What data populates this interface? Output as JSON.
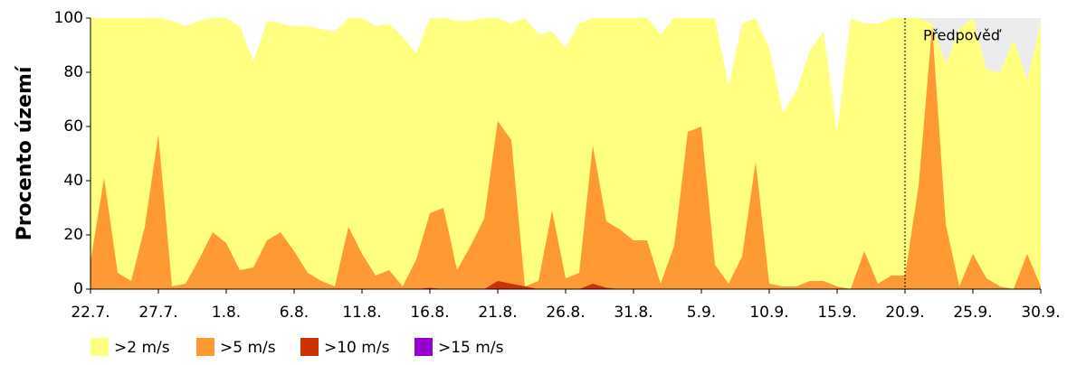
{
  "chart_data": {
    "type": "area",
    "ylabel": "Procento území",
    "categories": [
      "22.7.",
      null,
      null,
      null,
      null,
      "27.7.",
      null,
      null,
      null,
      null,
      "1.8.",
      null,
      null,
      null,
      null,
      "6.8.",
      null,
      null,
      null,
      null,
      "11.8.",
      null,
      null,
      null,
      null,
      "16.8.",
      null,
      null,
      null,
      null,
      "21.8.",
      null,
      null,
      null,
      null,
      "26.8.",
      null,
      null,
      null,
      null,
      "31.8.",
      null,
      null,
      null,
      null,
      "5.9.",
      null,
      null,
      null,
      null,
      "10.9.",
      null,
      null,
      null,
      null,
      "15.9.",
      null,
      null,
      null,
      null,
      "20.9.",
      null,
      null,
      null,
      null,
      "25.9.",
      null,
      null,
      null,
      null,
      "30.9."
    ],
    "series": [
      {
        "name": ">2 m/s",
        "color": "#ffff80",
        "values": [
          100,
          100,
          100,
          100,
          100,
          100,
          99,
          97,
          99,
          100,
          100,
          97,
          84,
          99,
          98,
          97,
          97,
          96,
          95,
          100,
          100,
          97,
          98,
          93,
          87,
          100,
          100,
          99,
          99,
          100,
          100,
          98,
          100,
          94,
          95,
          89,
          98,
          100,
          100,
          100,
          100,
          100,
          94,
          100,
          100,
          100,
          100,
          75,
          98,
          100,
          89,
          65,
          73,
          88,
          95,
          58,
          100,
          98,
          98,
          100,
          100,
          100,
          98,
          83,
          96,
          100,
          81,
          80,
          92,
          77,
          98
        ]
      },
      {
        "name": ">5 m/s",
        "color": "#ff9933",
        "values": [
          10,
          41,
          6,
          3,
          23,
          57,
          1,
          2,
          11,
          21,
          17,
          7,
          8,
          18,
          21,
          14,
          6,
          3,
          1,
          23,
          13,
          5,
          7,
          1,
          11,
          28,
          30,
          7,
          16,
          26,
          62,
          55,
          1,
          3,
          29,
          4,
          6,
          53,
          25,
          22,
          18,
          18,
          2,
          16,
          58,
          60,
          9,
          2,
          12,
          47,
          2,
          1,
          1,
          3,
          3,
          1,
          0,
          14,
          2,
          5,
          5,
          38,
          97,
          24,
          1,
          13,
          4,
          1,
          0,
          13,
          1
        ]
      },
      {
        "name": ">10 m/s",
        "color": "#cc3300",
        "values": [
          0,
          0,
          0,
          0,
          0,
          0,
          0,
          0,
          0,
          0,
          0,
          0,
          0,
          0,
          0,
          0,
          0,
          0,
          0,
          0,
          0,
          0,
          0,
          0,
          0,
          0.5,
          0,
          0,
          0,
          0,
          3,
          2,
          1,
          0,
          0,
          0,
          0,
          2,
          0.5,
          0,
          0,
          0,
          0,
          0,
          0,
          0,
          0,
          0,
          0,
          0,
          0,
          0,
          0,
          0,
          0,
          0,
          0,
          0,
          0,
          0,
          0,
          0,
          0,
          0,
          0,
          0,
          0,
          0,
          0,
          0,
          0
        ]
      },
      {
        "name": ">15 m/s",
        "color": "#9900cc",
        "values": [
          0,
          0,
          0,
          0,
          0,
          0,
          0,
          0,
          0,
          0,
          0,
          0,
          0,
          0,
          0,
          0,
          0,
          0,
          0,
          0,
          0,
          0,
          0,
          0,
          0,
          0,
          0,
          0,
          0,
          0,
          0,
          0,
          0,
          0,
          0,
          0,
          0,
          0,
          0,
          0,
          0,
          0,
          0,
          0,
          0,
          0,
          0,
          0,
          0,
          0,
          0,
          0,
          0,
          0,
          0,
          0,
          0,
          0,
          0,
          0,
          0,
          0,
          0,
          0,
          0,
          0,
          0,
          0,
          0,
          0,
          0
        ]
      }
    ],
    "ylim": [
      0,
      100
    ],
    "yticks": [
      0,
      20,
      40,
      60,
      80,
      100
    ],
    "forecast": {
      "label": "Předpověď",
      "start": 60,
      "color": "#ececec"
    }
  }
}
